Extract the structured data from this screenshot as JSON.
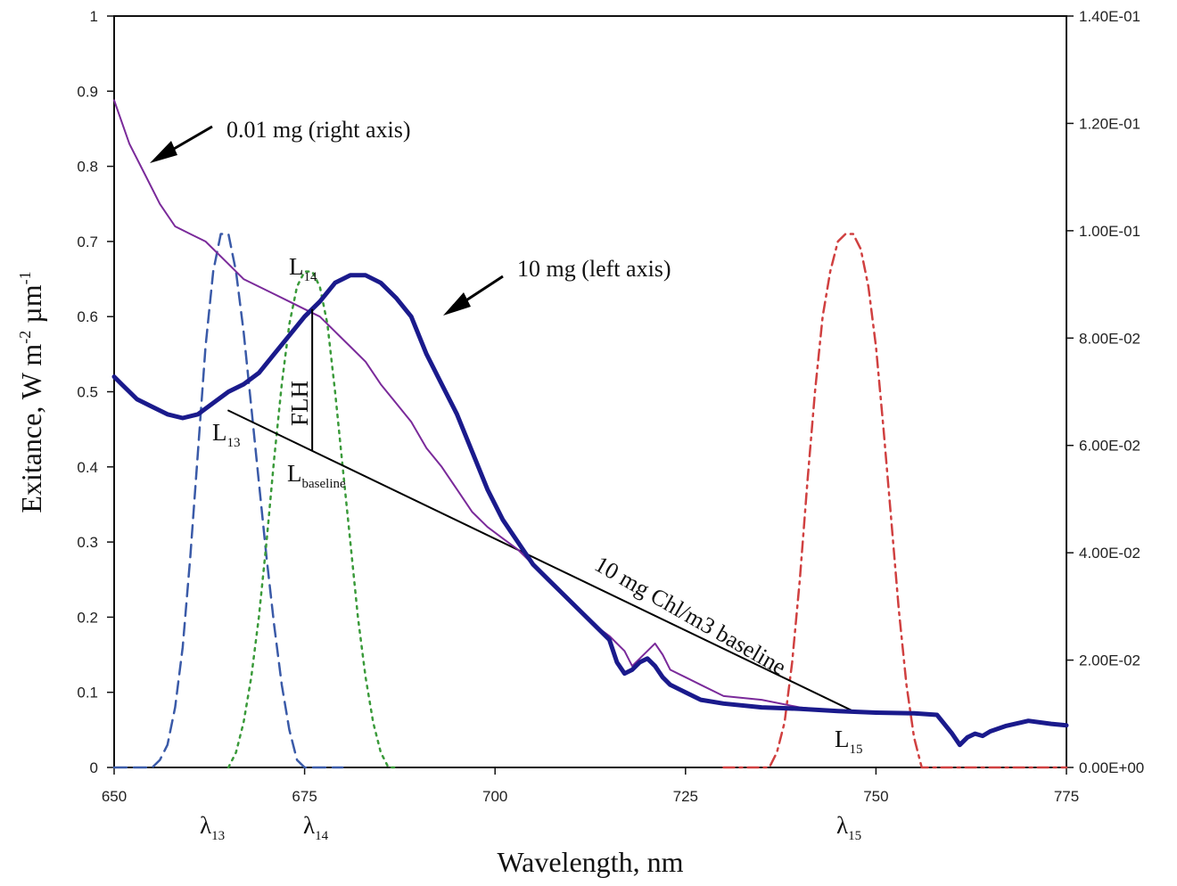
{
  "chart_data": {
    "type": "line",
    "title": "",
    "xlabel": "Wavelength, nm",
    "ylabel": "Exitance, W m-2 µm-1",
    "ylabel_parts": {
      "base": "Exitance, W m",
      "sup1": "-2",
      "mid": " µm",
      "sup2": "-1"
    },
    "xlim": [
      650,
      775
    ],
    "ylim_left": [
      0,
      1
    ],
    "ylim_right": [
      0,
      0.14
    ],
    "x_ticks": [
      "650",
      "675",
      "700",
      "725",
      "750",
      "775"
    ],
    "y_ticks_left": [
      "0",
      "0.1",
      "0.2",
      "0.3",
      "0.4",
      "0.5",
      "0.6",
      "0.7",
      "0.8",
      "0.9",
      "1"
    ],
    "y_ticks_right": [
      "0.00E+00",
      "2.00E-02",
      "4.00E-02",
      "6.00E-02",
      "8.00E-02",
      "1.00E-01",
      "1.20E-01",
      "1.40E-01"
    ],
    "grid": false,
    "series": [
      {
        "name": "10 mg (left axis)",
        "axis": "left",
        "color": "#1a1a8c",
        "style": "solid-thick",
        "x": [
          650,
          651,
          653,
          655,
          657,
          659,
          661,
          663,
          665,
          667,
          669,
          671,
          673,
          675,
          677,
          679,
          681,
          683,
          685,
          687,
          689,
          691,
          693,
          695,
          697,
          699,
          701,
          703,
          705,
          707,
          709,
          711,
          713,
          715,
          716,
          717,
          718,
          719,
          720,
          721,
          722,
          723,
          725,
          727,
          730,
          735,
          740,
          745,
          750,
          755,
          758,
          760,
          761,
          762,
          763,
          764,
          765,
          767,
          770,
          773,
          775
        ],
        "y": [
          0.52,
          0.51,
          0.49,
          0.48,
          0.47,
          0.465,
          0.47,
          0.485,
          0.5,
          0.51,
          0.525,
          0.55,
          0.575,
          0.6,
          0.62,
          0.645,
          0.655,
          0.655,
          0.645,
          0.625,
          0.6,
          0.55,
          0.51,
          0.47,
          0.42,
          0.37,
          0.33,
          0.3,
          0.27,
          0.25,
          0.23,
          0.21,
          0.19,
          0.17,
          0.14,
          0.125,
          0.13,
          0.14,
          0.145,
          0.135,
          0.12,
          0.11,
          0.1,
          0.09,
          0.085,
          0.08,
          0.078,
          0.075,
          0.073,
          0.072,
          0.07,
          0.045,
          0.03,
          0.04,
          0.045,
          0.042,
          0.048,
          0.055,
          0.062,
          0.058,
          0.056
        ]
      },
      {
        "name": "0.01 mg (right axis)",
        "axis": "right",
        "color": "#7a2a9a",
        "style": "solid-thin",
        "x": [
          650,
          652,
          654,
          656,
          658,
          660,
          662,
          665,
          667,
          669,
          671,
          673,
          675,
          677,
          679,
          681,
          683,
          685,
          687,
          689,
          691,
          693,
          695,
          697,
          699,
          701,
          703,
          705,
          707,
          709,
          711,
          713,
          715,
          717,
          718,
          719,
          720,
          721,
          722,
          723,
          725,
          727,
          730,
          735,
          740,
          745,
          750,
          755,
          758
        ],
        "y": [
          0.1243,
          0.1162,
          0.1106,
          0.105,
          0.1008,
          0.0994,
          0.098,
          0.0938,
          0.091,
          0.0896,
          0.0882,
          0.0868,
          0.0854,
          0.084,
          0.0812,
          0.0784,
          0.0756,
          0.0714,
          0.0679,
          0.0644,
          0.0595,
          0.056,
          0.0518,
          0.0476,
          0.0448,
          0.0427,
          0.0406,
          0.0378,
          0.035,
          0.0322,
          0.0294,
          0.0266,
          0.0245,
          0.0217,
          0.0189,
          0.0203,
          0.0217,
          0.0231,
          0.021,
          0.0182,
          0.0168,
          0.0154,
          0.0133,
          0.0126,
          0.0112,
          0.0105,
          0.0102,
          0.0101,
          0.01
        ]
      },
      {
        "name": "λ13 band",
        "axis": "left",
        "color": "#3a5aa8",
        "style": "dashed",
        "x": [
          650,
          655,
          656,
          657,
          658,
          659,
          660,
          661,
          662,
          663,
          664,
          665,
          666,
          667,
          668,
          669,
          670,
          671,
          672,
          673,
          674,
          675,
          680
        ],
        "y": [
          0,
          0,
          0.01,
          0.03,
          0.08,
          0.16,
          0.28,
          0.42,
          0.56,
          0.66,
          0.71,
          0.71,
          0.66,
          0.58,
          0.48,
          0.38,
          0.28,
          0.19,
          0.11,
          0.05,
          0.01,
          0,
          0
        ]
      },
      {
        "name": "λ14 band",
        "axis": "left",
        "color": "#3a9a3a",
        "style": "dotted",
        "x": [
          665,
          666,
          667,
          668,
          669,
          670,
          671,
          672,
          673,
          674,
          675,
          676,
          677,
          678,
          679,
          680,
          681,
          682,
          683,
          684,
          685,
          686,
          687
        ],
        "y": [
          0,
          0.02,
          0.06,
          0.12,
          0.2,
          0.3,
          0.41,
          0.51,
          0.59,
          0.64,
          0.66,
          0.66,
          0.64,
          0.59,
          0.5,
          0.4,
          0.3,
          0.2,
          0.12,
          0.06,
          0.02,
          0,
          0
        ]
      },
      {
        "name": "λ15 band",
        "axis": "left",
        "color": "#d04040",
        "style": "dash-dot",
        "x": [
          730,
          736,
          737,
          738,
          739,
          740,
          741,
          742,
          743,
          744,
          745,
          746,
          747,
          748,
          749,
          750,
          751,
          752,
          753,
          754,
          755,
          756,
          775
        ],
        "y": [
          0,
          0,
          0.02,
          0.06,
          0.14,
          0.25,
          0.38,
          0.5,
          0.6,
          0.66,
          0.7,
          0.71,
          0.71,
          0.69,
          0.64,
          0.56,
          0.45,
          0.33,
          0.21,
          0.11,
          0.04,
          0,
          0
        ]
      },
      {
        "name": "10 mg Chl/m3 baseline",
        "axis": "left",
        "color": "#000000",
        "style": "solid-baseline",
        "x": [
          665,
          747
        ],
        "y": [
          0.475,
          0.075
        ]
      }
    ],
    "annotations": {
      "right_axis_label": "0.01 mg (right axis)",
      "left_axis_label": "10 mg (left axis)",
      "baseline_label": "10 mg Chl/m3 baseline",
      "flh": "FLH",
      "L13": {
        "main": "L",
        "sub": "13"
      },
      "L14": {
        "main": "L",
        "sub": "14"
      },
      "L15": {
        "main": "L",
        "sub": "15"
      },
      "Lbaseline": {
        "main": "L",
        "sub": "baseline"
      },
      "lambda13": {
        "main": "λ",
        "sub": "13"
      },
      "lambda14": {
        "main": "λ",
        "sub": "14"
      },
      "lambda15": {
        "main": "λ",
        "sub": "15"
      }
    }
  }
}
